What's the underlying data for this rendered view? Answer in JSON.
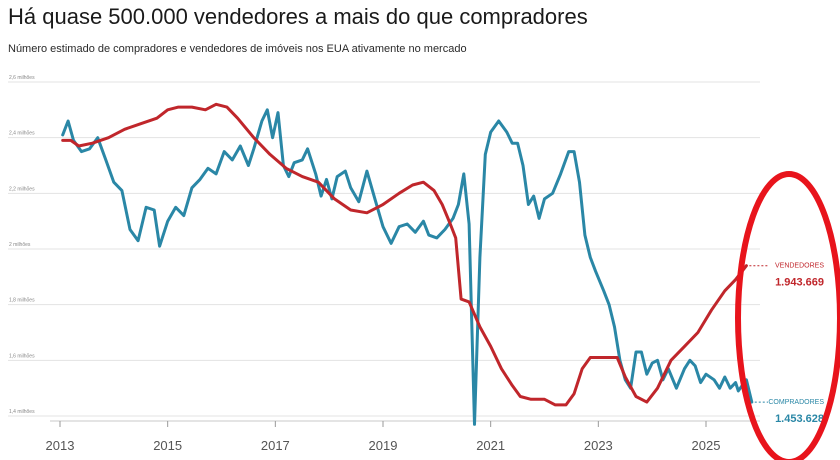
{
  "header": {
    "title": "Há quase 500.000 vendedores a mais do que compradores",
    "subtitle": "Número estimado de compradores e vendedores de imóveis nos EUA ativamente no mercado"
  },
  "colors": {
    "sellers": "#c0262b",
    "buyers": "#2a87a6",
    "annotation_ellipse": "#e8141c",
    "grid": "#e3e3e3",
    "axis": "#9a9a9a"
  },
  "chart_data": {
    "type": "line",
    "title": "Há quase 500.000 vendedores a mais do que compradores",
    "subtitle": "Número estimado de compradores e vendedores de imóveis nos EUA ativamente no mercado",
    "xlabel": "",
    "ylabel": "",
    "xlim": [
      2013,
      2025.9
    ],
    "ylim": [
      1.4,
      2.6
    ],
    "y_unit": "milhões",
    "y_ticks": [
      {
        "value": 2.6,
        "label": "2,6 milhões"
      },
      {
        "value": 2.4,
        "label": "2,4 milhões"
      },
      {
        "value": 2.2,
        "label": "2,2 milhões"
      },
      {
        "value": 2.0,
        "label": "2 milhões"
      },
      {
        "value": 1.8,
        "label": "1,8 milhões"
      },
      {
        "value": 1.6,
        "label": "1,6 milhões"
      },
      {
        "value": 1.4,
        "label": "1,4 milhões"
      }
    ],
    "x_ticks": [
      {
        "value": 2013,
        "label": "2013"
      },
      {
        "value": 2015,
        "label": "2015"
      },
      {
        "value": 2017,
        "label": "2017"
      },
      {
        "value": 2019,
        "label": "2019"
      },
      {
        "value": 2021,
        "label": "2021"
      },
      {
        "value": 2023,
        "label": "2023"
      },
      {
        "value": 2025,
        "label": "2025"
      }
    ],
    "grid": true,
    "series": [
      {
        "name": "VENDEDORES",
        "end_value_label": "1.943.669",
        "points": [
          [
            2013.05,
            2.39
          ],
          [
            2013.2,
            2.39
          ],
          [
            2013.35,
            2.37
          ],
          [
            2013.6,
            2.38
          ],
          [
            2013.9,
            2.4
          ],
          [
            2014.2,
            2.43
          ],
          [
            2014.5,
            2.45
          ],
          [
            2014.8,
            2.47
          ],
          [
            2015.0,
            2.5
          ],
          [
            2015.2,
            2.51
          ],
          [
            2015.45,
            2.51
          ],
          [
            2015.7,
            2.5
          ],
          [
            2015.9,
            2.52
          ],
          [
            2016.1,
            2.51
          ],
          [
            2016.3,
            2.47
          ],
          [
            2016.6,
            2.4
          ],
          [
            2016.9,
            2.34
          ],
          [
            2017.2,
            2.29
          ],
          [
            2017.5,
            2.26
          ],
          [
            2017.8,
            2.24
          ],
          [
            2018.1,
            2.18
          ],
          [
            2018.4,
            2.14
          ],
          [
            2018.7,
            2.13
          ],
          [
            2019.0,
            2.16
          ],
          [
            2019.3,
            2.2
          ],
          [
            2019.55,
            2.23
          ],
          [
            2019.75,
            2.24
          ],
          [
            2019.95,
            2.21
          ],
          [
            2020.1,
            2.16
          ],
          [
            2020.25,
            2.09
          ],
          [
            2020.35,
            2.04
          ],
          [
            2020.45,
            1.82
          ],
          [
            2020.6,
            1.81
          ],
          [
            2020.8,
            1.72
          ],
          [
            2021.0,
            1.65
          ],
          [
            2021.2,
            1.57
          ],
          [
            2021.4,
            1.51
          ],
          [
            2021.55,
            1.47
          ],
          [
            2021.75,
            1.46
          ],
          [
            2022.0,
            1.46
          ],
          [
            2022.2,
            1.44
          ],
          [
            2022.4,
            1.44
          ],
          [
            2022.55,
            1.48
          ],
          [
            2022.7,
            1.57
          ],
          [
            2022.85,
            1.61
          ],
          [
            2023.1,
            1.61
          ],
          [
            2023.35,
            1.61
          ],
          [
            2023.5,
            1.54
          ],
          [
            2023.7,
            1.47
          ],
          [
            2023.9,
            1.45
          ],
          [
            2024.1,
            1.5
          ],
          [
            2024.35,
            1.6
          ],
          [
            2024.6,
            1.65
          ],
          [
            2024.85,
            1.7
          ],
          [
            2025.1,
            1.78
          ],
          [
            2025.35,
            1.85
          ],
          [
            2025.55,
            1.89
          ],
          [
            2025.75,
            1.94
          ]
        ]
      },
      {
        "name": "COMPRADORES",
        "end_value_label": "1.453.628",
        "points": [
          [
            2013.05,
            2.41
          ],
          [
            2013.15,
            2.46
          ],
          [
            2013.25,
            2.39
          ],
          [
            2013.4,
            2.35
          ],
          [
            2013.55,
            2.36
          ],
          [
            2013.7,
            2.4
          ],
          [
            2013.85,
            2.32
          ],
          [
            2014.0,
            2.24
          ],
          [
            2014.15,
            2.21
          ],
          [
            2014.3,
            2.07
          ],
          [
            2014.45,
            2.03
          ],
          [
            2014.6,
            2.15
          ],
          [
            2014.75,
            2.14
          ],
          [
            2014.85,
            2.01
          ],
          [
            2015.0,
            2.1
          ],
          [
            2015.15,
            2.15
          ],
          [
            2015.3,
            2.12
          ],
          [
            2015.45,
            2.22
          ],
          [
            2015.6,
            2.25
          ],
          [
            2015.75,
            2.29
          ],
          [
            2015.9,
            2.27
          ],
          [
            2016.05,
            2.35
          ],
          [
            2016.2,
            2.32
          ],
          [
            2016.35,
            2.37
          ],
          [
            2016.5,
            2.3
          ],
          [
            2016.6,
            2.36
          ],
          [
            2016.75,
            2.46
          ],
          [
            2016.85,
            2.5
          ],
          [
            2016.95,
            2.4
          ],
          [
            2017.05,
            2.49
          ],
          [
            2017.15,
            2.3
          ],
          [
            2017.25,
            2.26
          ],
          [
            2017.35,
            2.31
          ],
          [
            2017.5,
            2.32
          ],
          [
            2017.6,
            2.36
          ],
          [
            2017.75,
            2.27
          ],
          [
            2017.85,
            2.19
          ],
          [
            2017.95,
            2.25
          ],
          [
            2018.05,
            2.18
          ],
          [
            2018.15,
            2.26
          ],
          [
            2018.3,
            2.28
          ],
          [
            2018.4,
            2.22
          ],
          [
            2018.55,
            2.17
          ],
          [
            2018.7,
            2.28
          ],
          [
            2018.85,
            2.18
          ],
          [
            2019.0,
            2.08
          ],
          [
            2019.15,
            2.02
          ],
          [
            2019.3,
            2.08
          ],
          [
            2019.45,
            2.09
          ],
          [
            2019.6,
            2.06
          ],
          [
            2019.75,
            2.1
          ],
          [
            2019.85,
            2.05
          ],
          [
            2020.0,
            2.04
          ],
          [
            2020.15,
            2.07
          ],
          [
            2020.3,
            2.11
          ],
          [
            2020.4,
            2.16
          ],
          [
            2020.5,
            2.27
          ],
          [
            2020.6,
            2.09
          ],
          [
            2020.7,
            1.37
          ],
          [
            2020.8,
            1.97
          ],
          [
            2020.9,
            2.34
          ],
          [
            2021.0,
            2.42
          ],
          [
            2021.15,
            2.46
          ],
          [
            2021.3,
            2.42
          ],
          [
            2021.4,
            2.38
          ],
          [
            2021.5,
            2.38
          ],
          [
            2021.6,
            2.3
          ],
          [
            2021.7,
            2.16
          ],
          [
            2021.8,
            2.19
          ],
          [
            2021.9,
            2.11
          ],
          [
            2022.0,
            2.18
          ],
          [
            2022.15,
            2.2
          ],
          [
            2022.3,
            2.27
          ],
          [
            2022.45,
            2.35
          ],
          [
            2022.55,
            2.35
          ],
          [
            2022.65,
            2.24
          ],
          [
            2022.75,
            2.05
          ],
          [
            2022.85,
            1.97
          ],
          [
            2022.95,
            1.92
          ],
          [
            2023.1,
            1.85
          ],
          [
            2023.2,
            1.8
          ],
          [
            2023.3,
            1.72
          ],
          [
            2023.4,
            1.6
          ],
          [
            2023.5,
            1.53
          ],
          [
            2023.6,
            1.5
          ],
          [
            2023.7,
            1.63
          ],
          [
            2023.8,
            1.63
          ],
          [
            2023.9,
            1.55
          ],
          [
            2024.0,
            1.59
          ],
          [
            2024.1,
            1.6
          ],
          [
            2024.2,
            1.53
          ],
          [
            2024.3,
            1.57
          ],
          [
            2024.45,
            1.5
          ],
          [
            2024.6,
            1.57
          ],
          [
            2024.7,
            1.6
          ],
          [
            2024.8,
            1.58
          ],
          [
            2024.9,
            1.52
          ],
          [
            2025.0,
            1.55
          ],
          [
            2025.15,
            1.53
          ],
          [
            2025.25,
            1.5
          ],
          [
            2025.35,
            1.54
          ],
          [
            2025.45,
            1.5
          ],
          [
            2025.55,
            1.52
          ],
          [
            2025.6,
            1.49
          ],
          [
            2025.75,
            1.53
          ],
          [
            2025.85,
            1.45
          ]
        ]
      }
    ]
  }
}
